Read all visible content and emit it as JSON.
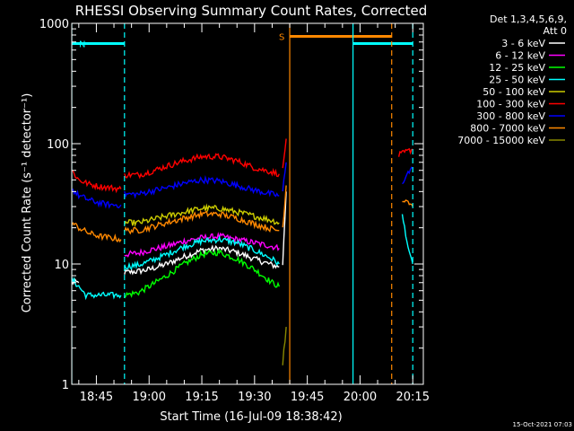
{
  "chart_data": {
    "type": "line",
    "title": "RHESSI Observing Summary Count Rates, Corrected",
    "ylabel": "Corrected Count Rate (s⁻¹ detector⁻¹)",
    "xlabel": "Start Time (16-Jul-09 18:38:42)",
    "y_scale": "log",
    "ylim": [
      1,
      1000
    ],
    "xlim": [
      "18:38",
      "20:18"
    ],
    "yticks": [
      {
        "value": 1,
        "label": "1"
      },
      {
        "value": 10,
        "label": "10"
      },
      {
        "value": 100,
        "label": "100"
      },
      {
        "value": 1000,
        "label": "1000"
      }
    ],
    "xticks": [
      {
        "value": "18:45",
        "label": "18:45"
      },
      {
        "value": "19:00",
        "label": "19:00"
      },
      {
        "value": "19:15",
        "label": "19:15"
      },
      {
        "value": "19:30",
        "label": "19:30"
      },
      {
        "value": "19:45",
        "label": "19:45"
      },
      {
        "value": "20:00",
        "label": "20:00"
      },
      {
        "value": "20:15",
        "label": "20:15"
      }
    ],
    "legend_header": [
      "Det 1,3,4,5,6,9,",
      "Att 0"
    ],
    "legend_placement": "right",
    "timestamp": "15-Oct-2021 07:03",
    "series": [
      {
        "name": "3 - 6 keV",
        "color": "#ffffff",
        "segments": [
          {
            "x": [
              "18:38",
              "18:40"
            ],
            "y": [
              7,
              7
            ]
          },
          {
            "x": [
              "18:53",
              "18:57",
              "19:00",
              "19:05",
              "19:10",
              "19:15",
              "19:20",
              "19:25",
              "19:30",
              "19:35",
              "19:37"
            ],
            "y": [
              8.5,
              8.7,
              9,
              10,
              11.5,
              13,
              13.5,
              12.5,
              11,
              9.8,
              9.5
            ]
          },
          {
            "x": [
              "19:38",
              "19:39"
            ],
            "y": [
              10,
              40
            ]
          }
        ]
      },
      {
        "name": "6 - 12 keV",
        "color": "#ff00ff",
        "segments": [
          {
            "x": [
              "18:53",
              "18:57",
              "19:00",
              "19:05",
              "19:10",
              "19:15",
              "19:20",
              "19:25",
              "19:30",
              "19:35",
              "19:37"
            ],
            "y": [
              12,
              12.3,
              13,
              14,
              15.5,
              16.5,
              17,
              16,
              15,
              14,
              13.5
            ]
          }
        ]
      },
      {
        "name": "12 - 25 keV",
        "color": "#00ff00",
        "segments": [
          {
            "x": [
              "18:53",
              "18:57",
              "19:00",
              "19:05",
              "19:10",
              "19:15",
              "19:20",
              "19:25",
              "19:30",
              "19:35",
              "19:37"
            ],
            "y": [
              5.5,
              5.8,
              6.5,
              8,
              10,
              12,
              12.5,
              11,
              9,
              7,
              6.5
            ]
          }
        ]
      },
      {
        "name": "25 - 50 keV",
        "color": "#00ffff",
        "segments": [
          {
            "x": [
              "18:38",
              "18:40",
              "18:42",
              "18:45",
              "18:48",
              "18:52"
            ],
            "y": [
              7.5,
              6.5,
              5.5,
              5.5,
              5.5,
              5.5
            ]
          },
          {
            "x": [
              "18:53",
              "18:57",
              "19:00",
              "19:05",
              "19:10",
              "19:15",
              "19:20",
              "19:25",
              "19:30",
              "19:35",
              "19:37"
            ],
            "y": [
              9.5,
              9.8,
              10.5,
              12,
              14,
              15.5,
              16,
              15,
              13,
              11,
              10
            ]
          },
          {
            "x": [
              "20:12",
              "20:13",
              "20:14",
              "20:15"
            ],
            "y": [
              25,
              18,
              12,
              10
            ]
          }
        ]
      },
      {
        "name": "50 - 100 keV",
        "color": "#cccc00",
        "segments": [
          {
            "x": [
              "18:53",
              "18:57",
              "19:00",
              "19:05",
              "19:10",
              "19:15",
              "19:20",
              "19:25",
              "19:30",
              "19:35",
              "19:37"
            ],
            "y": [
              22,
              22,
              23,
              25,
              27,
              29,
              29,
              27,
              25,
              23,
              22
            ]
          }
        ]
      },
      {
        "name": "100 - 300 keV",
        "color": "#ff0000",
        "segments": [
          {
            "x": [
              "18:38",
              "18:40",
              "18:43",
              "18:46",
              "18:49",
              "18:52"
            ],
            "y": [
              60,
              50,
              46,
              44,
              43,
              42
            ]
          },
          {
            "x": [
              "18:53",
              "18:57",
              "19:00",
              "19:05",
              "19:10",
              "19:15",
              "19:20",
              "19:25",
              "19:30",
              "19:35",
              "19:37"
            ],
            "y": [
              55,
              55,
              58,
              65,
              72,
              78,
              78,
              72,
              63,
              58,
              56
            ]
          },
          {
            "x": [
              "19:38",
              "19:39"
            ],
            "y": [
              60,
              110
            ]
          },
          {
            "x": [
              "20:11",
              "20:13",
              "20:15"
            ],
            "y": [
              80,
              85,
              90
            ]
          }
        ]
      },
      {
        "name": "300 - 800 keV",
        "color": "#0000ff",
        "segments": [
          {
            "x": [
              "18:38",
              "18:40",
              "18:43",
              "18:46",
              "18:49",
              "18:52"
            ],
            "y": [
              42,
              37,
              34,
              32,
              31,
              31
            ]
          },
          {
            "x": [
              "18:53",
              "18:57",
              "19:00",
              "19:05",
              "19:10",
              "19:15",
              "19:20",
              "19:25",
              "19:30",
              "19:35",
              "19:37"
            ],
            "y": [
              38,
              38,
              40,
              43,
              47,
              50,
              49,
              45,
              41,
              38,
              37
            ]
          },
          {
            "x": [
              "19:38",
              "19:39"
            ],
            "y": [
              40,
              70
            ]
          },
          {
            "x": [
              "20:12",
              "20:13",
              "20:15"
            ],
            "y": [
              45,
              55,
              62
            ]
          }
        ]
      },
      {
        "name": "800 - 7000 keV",
        "color": "#ff8800",
        "segments": [
          {
            "x": [
              "18:38",
              "18:40",
              "18:43",
              "18:46",
              "18:49",
              "18:52"
            ],
            "y": [
              22,
              20,
              18,
              17,
              16.5,
              16
            ]
          },
          {
            "x": [
              "18:53",
              "18:57",
              "19:00",
              "19:05",
              "19:10",
              "19:15",
              "19:20",
              "19:25",
              "19:30",
              "19:35",
              "19:37"
            ],
            "y": [
              19,
              19,
              20,
              22,
              24,
              26,
              26,
              24,
              21.5,
              19.5,
              19
            ]
          },
          {
            "x": [
              "19:38",
              "19:39"
            ],
            "y": [
              20,
              45
            ]
          },
          {
            "x": [
              "20:12",
              "20:13",
              "20:15"
            ],
            "y": [
              33,
              35,
              30
            ]
          }
        ]
      },
      {
        "name": "7000 - 15000 keV",
        "color": "#888800",
        "segments": [
          {
            "x": [
              "19:38",
              "19:39"
            ],
            "y": [
              1.5,
              3
            ]
          }
        ]
      }
    ],
    "annotations": {
      "flag_lines": [
        {
          "color": "#00ffff",
          "x_start": "18:38",
          "x_end": "18:53",
          "y": 680,
          "label": "N"
        },
        {
          "color": "#ff8800",
          "x_start": "19:40",
          "x_end": "20:09",
          "y": 780,
          "label": "S"
        },
        {
          "color": "#00ffff",
          "x_start": "19:58",
          "x_end": "20:15",
          "y": 680
        }
      ],
      "vlines_solid": [
        {
          "x": "18:38",
          "color": "#00ffff"
        },
        {
          "x": "19:40",
          "color": "#ff8800"
        },
        {
          "x": "19:58",
          "color": "#00ffff"
        }
      ],
      "vlines_dashed": [
        {
          "x": "18:53",
          "color": "#00ffff"
        },
        {
          "x": "20:09",
          "color": "#ff8800"
        },
        {
          "x": "20:15",
          "color": "#00ffff"
        }
      ]
    }
  }
}
